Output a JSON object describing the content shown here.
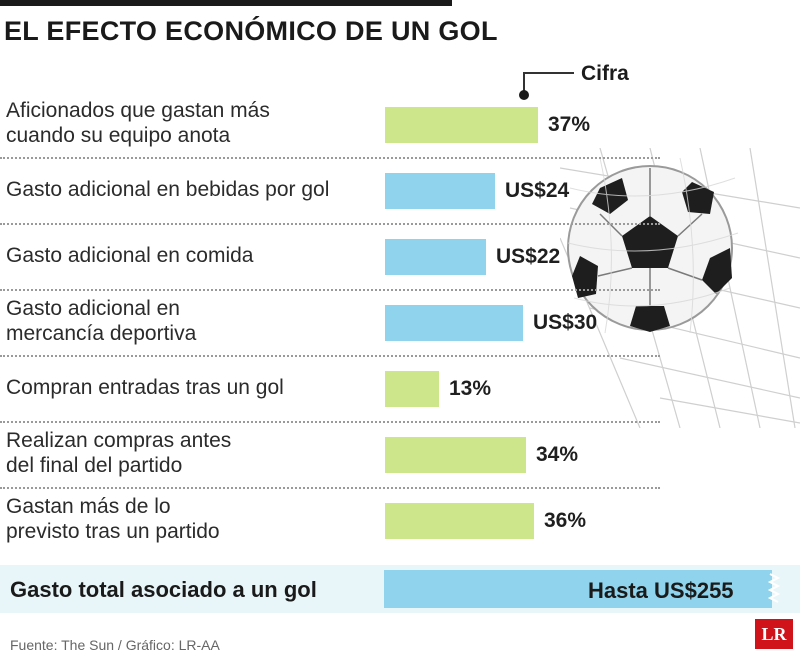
{
  "title": "EL EFECTO ECONÓMICO DE UN GOL",
  "legend_label": "Cifra",
  "chart_data": {
    "type": "bar",
    "title": "EL EFECTO ECONÓMICO DE UN GOL",
    "orientation": "horizontal",
    "categories": [
      "Aficionados que gastan más cuando su equipo anota",
      "Gasto adicional en bebidas por gol",
      "Gasto adicional en comida",
      "Gasto adicional en mercancía deportiva",
      "Compran entradas tras un gol",
      "Realizan compras antes del final del partido",
      "Gastan más de lo previsto tras un partido"
    ],
    "rows": [
      {
        "label_lines": [
          "Aficionados que gastan más",
          "cuando su equipo anota"
        ],
        "value": 37,
        "unit": "percent",
        "display": "37%",
        "color": "#cde68c"
      },
      {
        "label_lines": [
          "Gasto adicional en bebidas por gol"
        ],
        "value": 24,
        "unit": "usd",
        "display": "US$24",
        "color": "#8fd3ec"
      },
      {
        "label_lines": [
          "Gasto adicional en comida"
        ],
        "value": 22,
        "unit": "usd",
        "display": "US$22",
        "color": "#8fd3ec"
      },
      {
        "label_lines": [
          "Gasto adicional en",
          "mercancía deportiva"
        ],
        "value": 30,
        "unit": "usd",
        "display": "US$30",
        "color": "#8fd3ec"
      },
      {
        "label_lines": [
          "Compran entradas tras un gol"
        ],
        "value": 13,
        "unit": "percent",
        "display": "13%",
        "color": "#cde68c"
      },
      {
        "label_lines": [
          "Realizan compras antes",
          "del final del partido"
        ],
        "value": 34,
        "unit": "percent",
        "display": "34%",
        "color": "#cde68c"
      },
      {
        "label_lines": [
          "Gastan más de lo",
          "previsto tras un partido"
        ],
        "value": 36,
        "unit": "percent",
        "display": "36%",
        "color": "#cde68c"
      }
    ],
    "total": {
      "label": "Gasto total asociado a un gol",
      "value": 255,
      "unit": "usd",
      "display": "Hasta US$255",
      "color": "#8fd3ec"
    },
    "colors": {
      "percent": "#cde68c",
      "usd": "#8fd3ec"
    }
  },
  "source": "Fuente: The Sun / Gráfico: LR-AA",
  "logo_text": "LR"
}
